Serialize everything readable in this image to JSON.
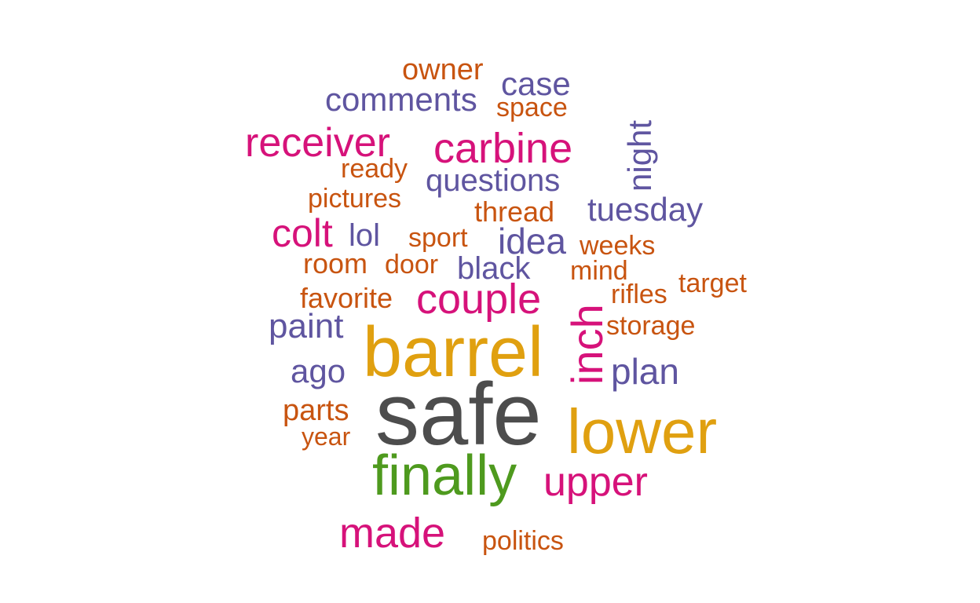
{
  "palette": {
    "dark_gray": "#4d4d4d",
    "gold": "#e0a010",
    "green": "#4e9a1e",
    "magenta": "#d6127a",
    "purple": "#5f55a0",
    "orange": "#c85410"
  },
  "words": [
    {
      "text": "safe",
      "color": "dark_gray"
    },
    {
      "text": "barrel",
      "color": "gold"
    },
    {
      "text": "lower",
      "color": "gold"
    },
    {
      "text": "finally",
      "color": "green"
    },
    {
      "text": "inch",
      "color": "magenta"
    },
    {
      "text": "couple",
      "color": "magenta"
    },
    {
      "text": "carbine",
      "color": "magenta"
    },
    {
      "text": "receiver",
      "color": "magenta"
    },
    {
      "text": "colt",
      "color": "magenta"
    },
    {
      "text": "made",
      "color": "magenta"
    },
    {
      "text": "upper",
      "color": "magenta"
    },
    {
      "text": "case",
      "color": "purple"
    },
    {
      "text": "comments",
      "color": "purple"
    },
    {
      "text": "questions",
      "color": "purple"
    },
    {
      "text": "night",
      "color": "purple"
    },
    {
      "text": "tuesday",
      "color": "purple"
    },
    {
      "text": "idea",
      "color": "purple"
    },
    {
      "text": "lol",
      "color": "purple"
    },
    {
      "text": "black",
      "color": "purple"
    },
    {
      "text": "paint",
      "color": "purple"
    },
    {
      "text": "ago",
      "color": "purple"
    },
    {
      "text": "plan",
      "color": "purple"
    },
    {
      "text": "owner",
      "color": "orange"
    },
    {
      "text": "space",
      "color": "orange"
    },
    {
      "text": "ready",
      "color": "orange"
    },
    {
      "text": "pictures",
      "color": "orange"
    },
    {
      "text": "thread",
      "color": "orange"
    },
    {
      "text": "sport",
      "color": "orange"
    },
    {
      "text": "weeks",
      "color": "orange"
    },
    {
      "text": "room",
      "color": "orange"
    },
    {
      "text": "door",
      "color": "orange"
    },
    {
      "text": "mind",
      "color": "orange"
    },
    {
      "text": "target",
      "color": "orange"
    },
    {
      "text": "rifles",
      "color": "orange"
    },
    {
      "text": "favorite",
      "color": "orange"
    },
    {
      "text": "storage",
      "color": "orange"
    },
    {
      "text": "parts",
      "color": "orange"
    },
    {
      "text": "year",
      "color": "orange"
    },
    {
      "text": "politics",
      "color": "orange"
    }
  ]
}
